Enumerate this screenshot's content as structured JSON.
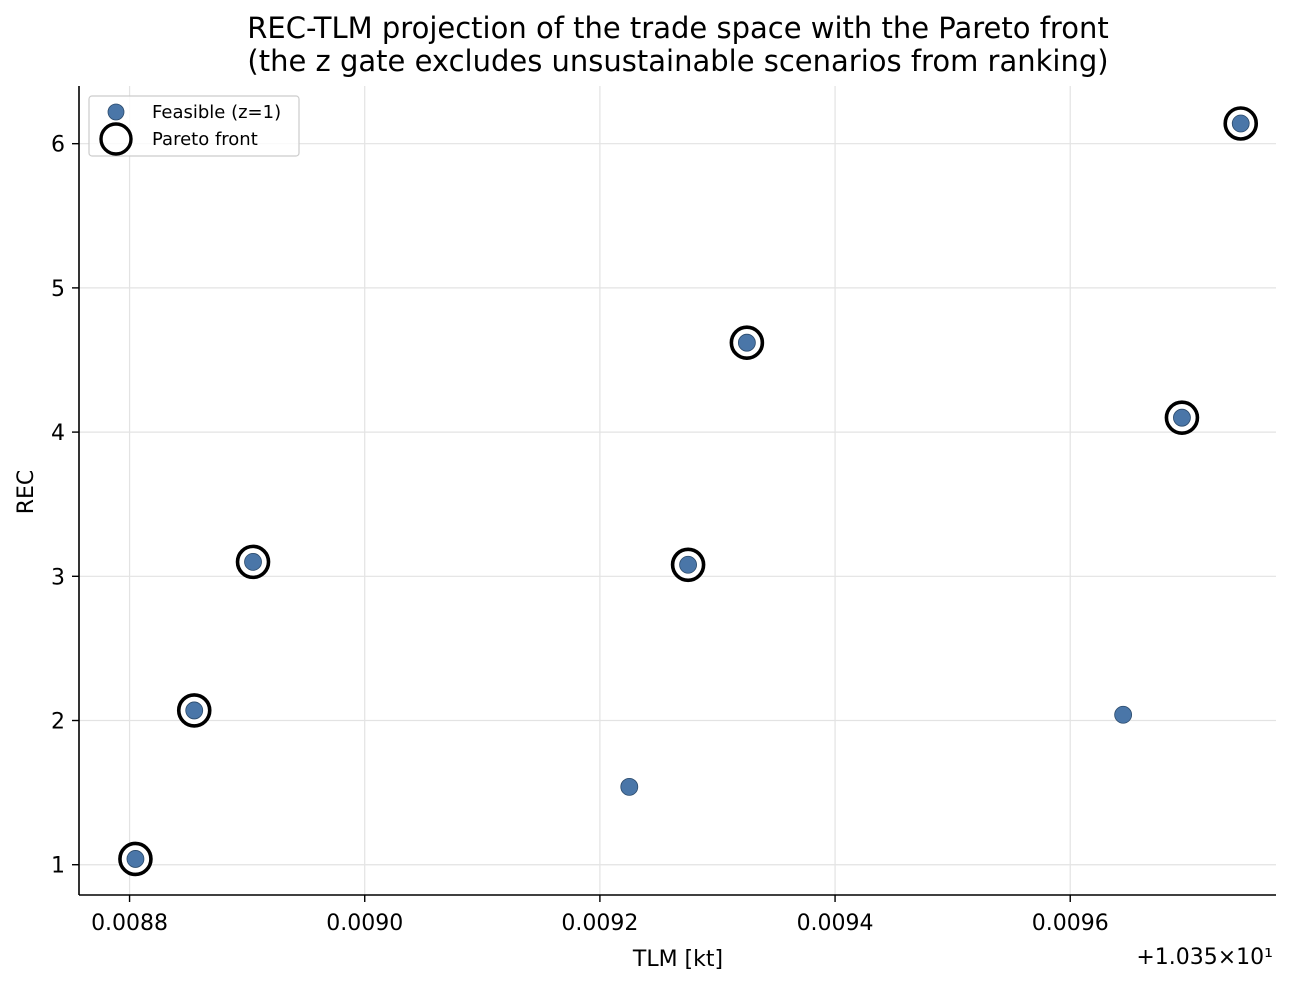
{
  "chart_data": {
    "type": "scatter",
    "title": "REC-TLM projection of the trade space with the Pareto front\n(the z gate excludes unsustainable scenarios from ranking)",
    "xlabel": "TLM [kt]",
    "ylabel": "REC",
    "x_offset_label": "+1.035×10¹",
    "x_offset": 10.35,
    "xlim": [
      0.008757,
      0.009775
    ],
    "ylim": [
      0.79,
      6.4
    ],
    "x_ticks": [
      0.0088,
      0.009,
      0.0092,
      0.0094,
      0.0096
    ],
    "x_tick_labels": [
      "0.0088",
      "0.0090",
      "0.0092",
      "0.0094",
      "0.0096"
    ],
    "y_ticks": [
      1,
      2,
      3,
      4,
      5,
      6
    ],
    "y_tick_labels": [
      "1",
      "2",
      "3",
      "4",
      "5",
      "6"
    ],
    "grid": true,
    "legend_position": "top-left",
    "series": [
      {
        "name": "Feasible (z=1)",
        "color": "#4a76a8",
        "x": [
          0.008805,
          0.008855,
          0.008905,
          0.009225,
          0.009275,
          0.009325,
          0.009645,
          0.009695,
          0.009745
        ],
        "y": [
          1.04,
          2.07,
          3.1,
          1.54,
          3.08,
          4.62,
          2.04,
          4.1,
          6.14
        ]
      },
      {
        "name": "Pareto front",
        "color": "#000000",
        "x": [
          0.008805,
          0.008855,
          0.008905,
          0.009275,
          0.009325,
          0.009695,
          0.009745
        ],
        "y": [
          1.04,
          2.07,
          3.1,
          3.08,
          4.62,
          4.1,
          6.14
        ]
      }
    ]
  }
}
